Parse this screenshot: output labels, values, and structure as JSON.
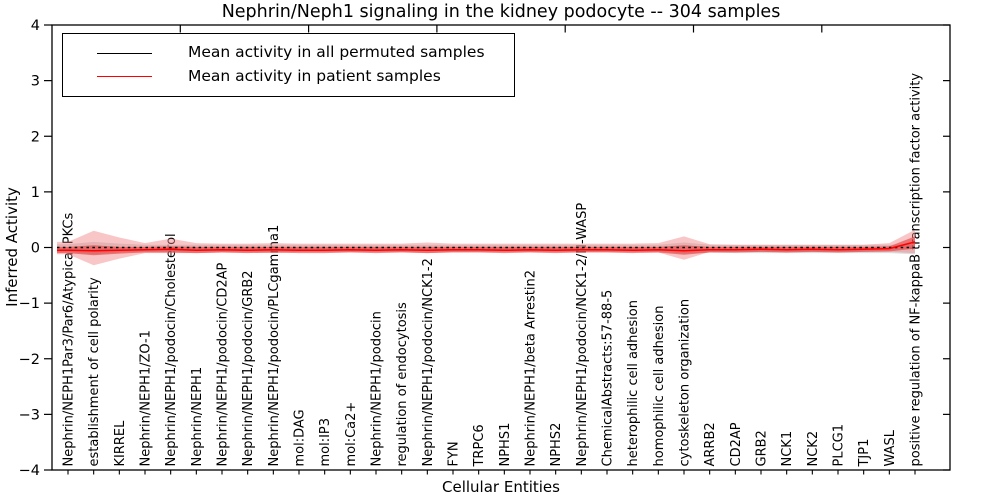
{
  "chart_data": {
    "type": "line",
    "title": "Nephrin/Neph1 signaling in the kidney podocyte -- 304 samples",
    "xlabel": "Cellular Entities",
    "ylabel": "Inferred Activity",
    "ylim": [
      -4,
      4
    ],
    "yticks": [
      4,
      3,
      2,
      1,
      0,
      -1,
      -2,
      -3,
      -4
    ],
    "grid": false,
    "legend": {
      "position": "upper left",
      "entries": [
        {
          "label": "Mean activity in all permuted samples",
          "color": "#000000"
        },
        {
          "label": "Mean activity in patient samples",
          "color": "#ff0000"
        }
      ]
    },
    "categories": [
      "Nephrin/NEPH1Par3/Par6/Atypical PKCs",
      "establishment of cell polarity",
      "KIRREL",
      "Nephrin/NEPH1/ZO-1",
      "Nephrin/NEPH1/podocin/Cholesterol",
      "Nephrin/NEPH1",
      "Nephrin/NEPH1/podocin/CD2AP",
      "Nephrin/NEPH1/podocin/GRB2",
      "Nephrin/NEPH1/podocin/PLCgamma1",
      "mol:DAG",
      "mol:IP3",
      "mol:Ca2+",
      "Nephrin/NEPH1/podocin",
      "regulation of endocytosis",
      "Nephrin/NEPH1/podocin/NCK1-2",
      "FYN",
      "TRPC6",
      "NPHS1",
      "Nephrin/NEPH1/beta Arrestin2",
      "NPHS2",
      "Nephrin/NEPH1/podocin/NCK1-2/N-WASP",
      "ChemicalAbstracts:57-88-5",
      "heterophilic cell adhesion",
      "homophilic cell adhesion",
      "cytoskeleton organization",
      "ARRB2",
      "CD2AP",
      "GRB2",
      "NCK1",
      "NCK2",
      "PLCG1",
      "TJP1",
      "WASL",
      "positive regulation of NF-kappaB transcription factor activity"
    ],
    "series": [
      {
        "name": "Mean activity in all permuted samples",
        "color": "#000000",
        "style": "dashed",
        "values": [
          0,
          0,
          0,
          0,
          0,
          0,
          0,
          0,
          0,
          0,
          0,
          0,
          0,
          0,
          0,
          0,
          0,
          0,
          0,
          0,
          0,
          0,
          0,
          0,
          0,
          0,
          0,
          0,
          0,
          0,
          0,
          0,
          0,
          0
        ]
      },
      {
        "name": "Mean activity in patient samples",
        "color": "#ff0000",
        "style": "solid",
        "values": [
          -0.05,
          -0.06,
          -0.05,
          -0.04,
          -0.03,
          -0.05,
          -0.04,
          -0.05,
          -0.04,
          -0.05,
          -0.05,
          -0.04,
          -0.05,
          -0.04,
          -0.05,
          -0.04,
          -0.04,
          -0.05,
          -0.04,
          -0.05,
          -0.04,
          -0.04,
          -0.05,
          -0.04,
          -0.06,
          -0.04,
          -0.04,
          -0.03,
          -0.04,
          -0.03,
          -0.04,
          -0.03,
          -0.02,
          0.1
        ]
      }
    ],
    "bands": [
      {
        "name": "permuted-sample-range",
        "color": "#bebebe",
        "opacity": 0.55,
        "upper": [
          0.06,
          0.1,
          0.07,
          0.05,
          0.05,
          0.05,
          0.05,
          0.05,
          0.05,
          0.05,
          0.05,
          0.05,
          0.05,
          0.05,
          0.05,
          0.05,
          0.05,
          0.05,
          0.05,
          0.05,
          0.05,
          0.05,
          0.05,
          0.05,
          0.09,
          0.05,
          0.05,
          0.05,
          0.05,
          0.05,
          0.05,
          0.05,
          0.05,
          0.06
        ],
        "lower": [
          -0.08,
          -0.12,
          -0.09,
          -0.07,
          -0.07,
          -0.07,
          -0.07,
          -0.07,
          -0.07,
          -0.07,
          -0.07,
          -0.07,
          -0.07,
          -0.07,
          -0.07,
          -0.07,
          -0.07,
          -0.07,
          -0.07,
          -0.07,
          -0.07,
          -0.07,
          -0.07,
          -0.07,
          -0.11,
          -0.09,
          -0.1,
          -0.1,
          -0.1,
          -0.1,
          -0.1,
          -0.1,
          -0.1,
          -0.12
        ]
      },
      {
        "name": "patient-sample-range-outer",
        "color": "#f08080",
        "opacity": 0.45,
        "upper": [
          0.1,
          0.3,
          0.18,
          0.08,
          0.16,
          0.08,
          0.07,
          0.07,
          0.08,
          0.07,
          0.07,
          0.07,
          0.07,
          0.07,
          0.09,
          0.07,
          0.07,
          0.07,
          0.07,
          0.07,
          0.07,
          0.07,
          0.07,
          0.08,
          0.2,
          0.06,
          0.05,
          0.05,
          0.05,
          0.05,
          0.05,
          0.05,
          0.08,
          0.32
        ],
        "lower": [
          -0.12,
          -0.32,
          -0.2,
          -0.1,
          -0.1,
          -0.1,
          -0.09,
          -0.09,
          -0.1,
          -0.08,
          -0.08,
          -0.08,
          -0.08,
          -0.08,
          -0.1,
          -0.08,
          -0.08,
          -0.08,
          -0.08,
          -0.08,
          -0.08,
          -0.08,
          -0.08,
          -0.09,
          -0.22,
          -0.08,
          -0.08,
          -0.08,
          -0.08,
          -0.08,
          -0.08,
          -0.08,
          -0.08,
          -0.1
        ]
      },
      {
        "name": "patient-sample-range-inner",
        "color": "#e03030",
        "opacity": 0.55,
        "upper": [
          0.01,
          0.04,
          0.01,
          0.01,
          0.02,
          0.01,
          0.01,
          0.01,
          0.01,
          0.01,
          0.01,
          0.01,
          0.01,
          0.01,
          0.01,
          0.01,
          0.01,
          0.01,
          0.01,
          0.01,
          0.01,
          0.01,
          0.01,
          0.01,
          0.04,
          0.01,
          0.01,
          0.01,
          0.01,
          0.01,
          0.01,
          0.01,
          0.02,
          0.2
        ],
        "lower": [
          -0.1,
          -0.14,
          -0.11,
          -0.09,
          -0.09,
          -0.1,
          -0.09,
          -0.1,
          -0.09,
          -0.1,
          -0.1,
          -0.09,
          -0.1,
          -0.09,
          -0.1,
          -0.09,
          -0.09,
          -0.1,
          -0.09,
          -0.1,
          -0.09,
          -0.09,
          -0.1,
          -0.09,
          -0.13,
          -0.09,
          -0.09,
          -0.08,
          -0.09,
          -0.08,
          -0.09,
          -0.08,
          -0.07,
          -0.02
        ]
      }
    ]
  }
}
